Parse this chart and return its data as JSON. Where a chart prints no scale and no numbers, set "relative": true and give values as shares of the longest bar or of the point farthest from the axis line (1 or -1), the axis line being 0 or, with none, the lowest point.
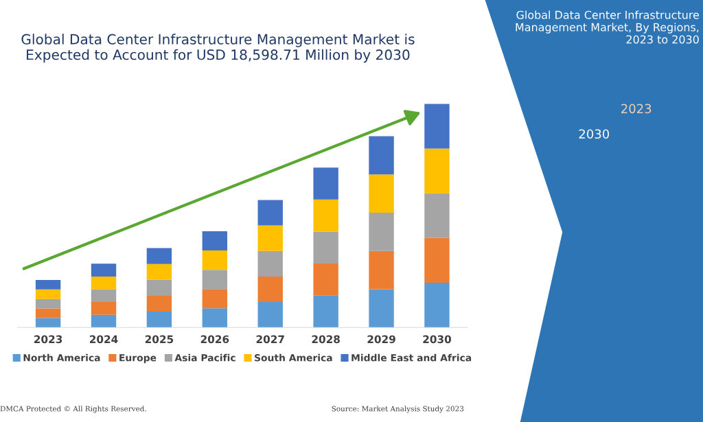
{
  "chart_data": {
    "type": "bar",
    "stacked": true,
    "relative": true,
    "title": "Global Data Center Infrastructure Management Market is\nExpected to Account for USD 18,598.71 Million by 2030",
    "subtitle": "Global Data Center Infrastructure\nManagement Market, By Regions,\n2023 to 2030",
    "categories": [
      "2023",
      "2024",
      "2025",
      "2026",
      "2027",
      "2028",
      "2029",
      "2030"
    ],
    "series": [
      {
        "name": "North America",
        "color": "#5b9bd5",
        "values": [
          0.0425,
          0.057,
          0.071,
          0.086,
          0.114,
          0.143,
          0.171,
          0.2
        ]
      },
      {
        "name": "Europe",
        "color": "#ed7d31",
        "values": [
          0.0425,
          0.057,
          0.071,
          0.086,
          0.114,
          0.143,
          0.171,
          0.2
        ]
      },
      {
        "name": "Asia Pacific",
        "color": "#a5a5a5",
        "values": [
          0.0425,
          0.057,
          0.071,
          0.086,
          0.114,
          0.143,
          0.171,
          0.2
        ]
      },
      {
        "name": "South America",
        "color": "#ffc000",
        "values": [
          0.0425,
          0.057,
          0.071,
          0.086,
          0.114,
          0.143,
          0.171,
          0.2
        ]
      },
      {
        "name": "Middle East and Africa",
        "color": "#4472c4",
        "values": [
          0.0425,
          0.057,
          0.071,
          0.086,
          0.114,
          0.143,
          0.171,
          0.2
        ]
      }
    ],
    "annotations": [
      "2023",
      "2030",
      "DMCA Protected © All Rights Reserved.",
      "Source: Market Analysis Study 2023"
    ],
    "legend": "bottom",
    "grid": false
  }
}
